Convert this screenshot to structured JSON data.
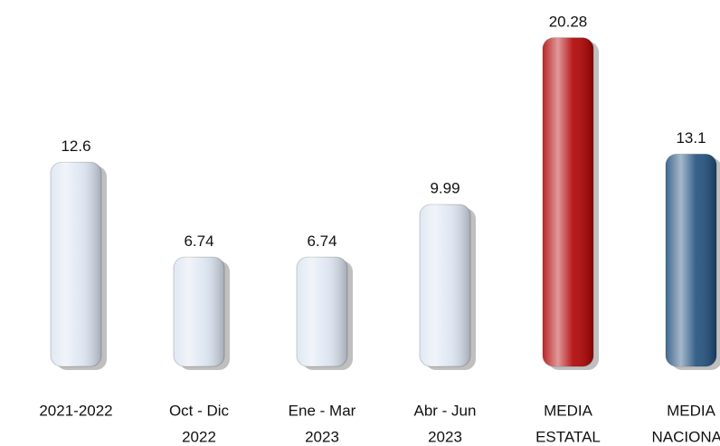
{
  "chart_data": {
    "type": "bar",
    "categories": [
      [
        "2021-2022"
      ],
      [
        "Oct - Dic",
        "2022"
      ],
      [
        "Ene - Mar",
        "2023"
      ],
      [
        "Abr - Jun",
        "2023"
      ],
      [
        "MEDIA",
        "ESTATAL"
      ],
      [
        "MEDIA",
        "NACIONAL"
      ]
    ],
    "values": [
      12.6,
      6.74,
      6.74,
      9.99,
      20.28,
      13.1
    ],
    "colors": [
      "#dbe4f1",
      "#dbe4f1",
      "#dbe4f1",
      "#dbe4f1",
      "#b00000",
      "#1f4e7c"
    ],
    "ylim": [
      0,
      22
    ]
  }
}
